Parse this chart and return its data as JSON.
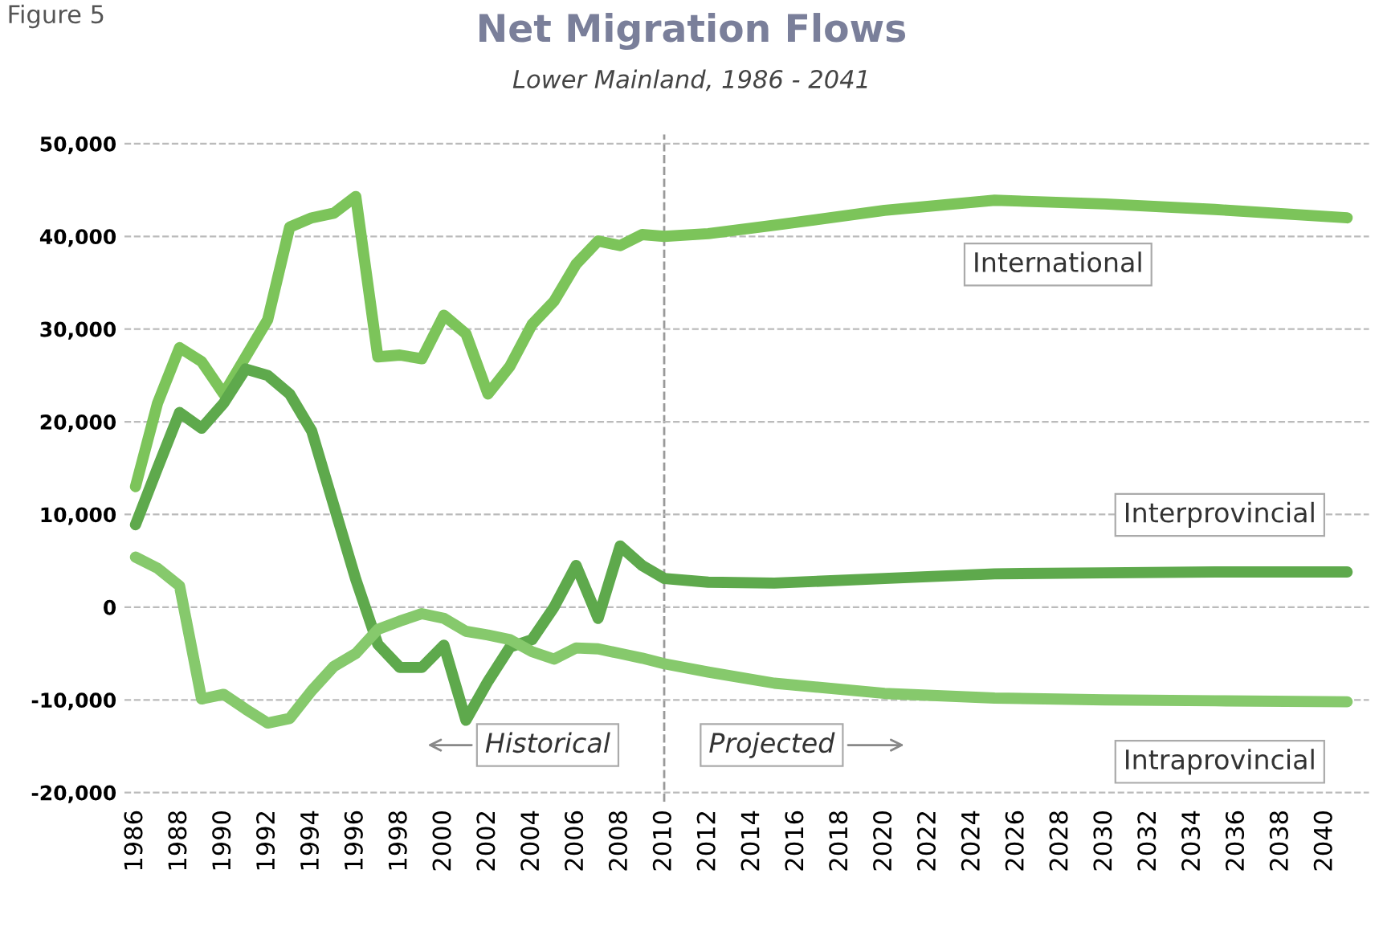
{
  "chart_data": {
    "type": "line",
    "title": "Net Migration Flows",
    "subtitle": "Lower Mainland, 1986 - 2041",
    "annotations": [
      "Figure 5",
      "Historical",
      "Projected"
    ],
    "xlim": [
      1985.5,
      2042
    ],
    "xticks": [
      1986,
      1988,
      1990,
      1992,
      1994,
      1996,
      1998,
      2000,
      2002,
      2004,
      2006,
      2008,
      2010,
      2012,
      2014,
      2016,
      2018,
      2020,
      2022,
      2024,
      2026,
      2028,
      2030,
      2032,
      2034,
      2036,
      2038,
      2040
    ],
    "ylim": [
      -21000,
      51000
    ],
    "yticks": [
      {
        "value": -20000,
        "label": "-20,000"
      },
      {
        "value": -10000,
        "label": "-10,000"
      },
      {
        "value": 0,
        "label": "0"
      },
      {
        "value": 10000,
        "label": "10,000"
      },
      {
        "value": 20000,
        "label": "20,000"
      },
      {
        "value": 30000,
        "label": "30,000"
      },
      {
        "value": 40000,
        "label": "40,000"
      },
      {
        "value": 50000,
        "label": "50,000"
      }
    ],
    "grid": "y",
    "legend": false,
    "marker": "none",
    "line_style": "solid",
    "ref_lines": [
      {
        "axis": "x",
        "value": 2010,
        "color": "#999999",
        "line_style": "dashed"
      }
    ],
    "series": [
      {
        "name": "International",
        "color": "#7cc45a",
        "x": [
          1986,
          1987,
          1988,
          1989,
          1990,
          1991,
          1992,
          1993,
          1994,
          1995,
          1996,
          1997,
          1998,
          1999,
          2000,
          2001,
          2002,
          2003,
          2004,
          2005,
          2006,
          2007,
          2008,
          2009,
          2010,
          2012,
          2015,
          2020,
          2025,
          2030,
          2035,
          2041
        ],
        "values": [
          13000,
          22000,
          28000,
          26500,
          23000,
          27000,
          31000,
          41000,
          42000,
          42500,
          44300,
          27000,
          27200,
          26800,
          31500,
          29500,
          23000,
          26000,
          30500,
          33000,
          37000,
          39500,
          39000,
          40200,
          40000,
          40300,
          41200,
          42800,
          43900,
          43500,
          42900,
          42000
        ]
      },
      {
        "name": "Interprovincial",
        "color": "#5ea94c",
        "x": [
          1986,
          1987,
          1988,
          1989,
          1990,
          1991,
          1992,
          1993,
          1994,
          1995,
          1996,
          1997,
          1998,
          1999,
          2000,
          2001,
          2002,
          2003,
          2004,
          2005,
          2006,
          2007,
          2008,
          2009,
          2010,
          2012,
          2015,
          2020,
          2025,
          2030,
          2035,
          2041
        ],
        "values": [
          8900,
          15000,
          21000,
          19300,
          22000,
          25700,
          25000,
          23000,
          19000,
          11000,
          3000,
          -4000,
          -6500,
          -6500,
          -4100,
          -12200,
          -8000,
          -4300,
          -3500,
          0,
          4500,
          -1200,
          6600,
          4500,
          3100,
          2700,
          2600,
          3100,
          3600,
          3700,
          3800,
          3800
        ]
      },
      {
        "name": "Intraprovincial",
        "color": "#86c96c",
        "x": [
          1986,
          1987,
          1988,
          1989,
          1990,
          1991,
          1992,
          1993,
          1994,
          1995,
          1996,
          1997,
          1998,
          1999,
          2000,
          2001,
          2002,
          2003,
          2004,
          2005,
          2006,
          2007,
          2008,
          2009,
          2010,
          2012,
          2015,
          2020,
          2025,
          2030,
          2035,
          2041
        ],
        "values": [
          5400,
          4200,
          2300,
          -9900,
          -9400,
          -11000,
          -12500,
          -12000,
          -9000,
          -6400,
          -5000,
          -2400,
          -1500,
          -700,
          -1200,
          -2600,
          -3000,
          -3500,
          -4800,
          -5600,
          -4400,
          -4500,
          -5000,
          -5500,
          -6100,
          -7000,
          -8200,
          -9300,
          -9800,
          -10000,
          -10100,
          -10200
        ]
      }
    ]
  }
}
